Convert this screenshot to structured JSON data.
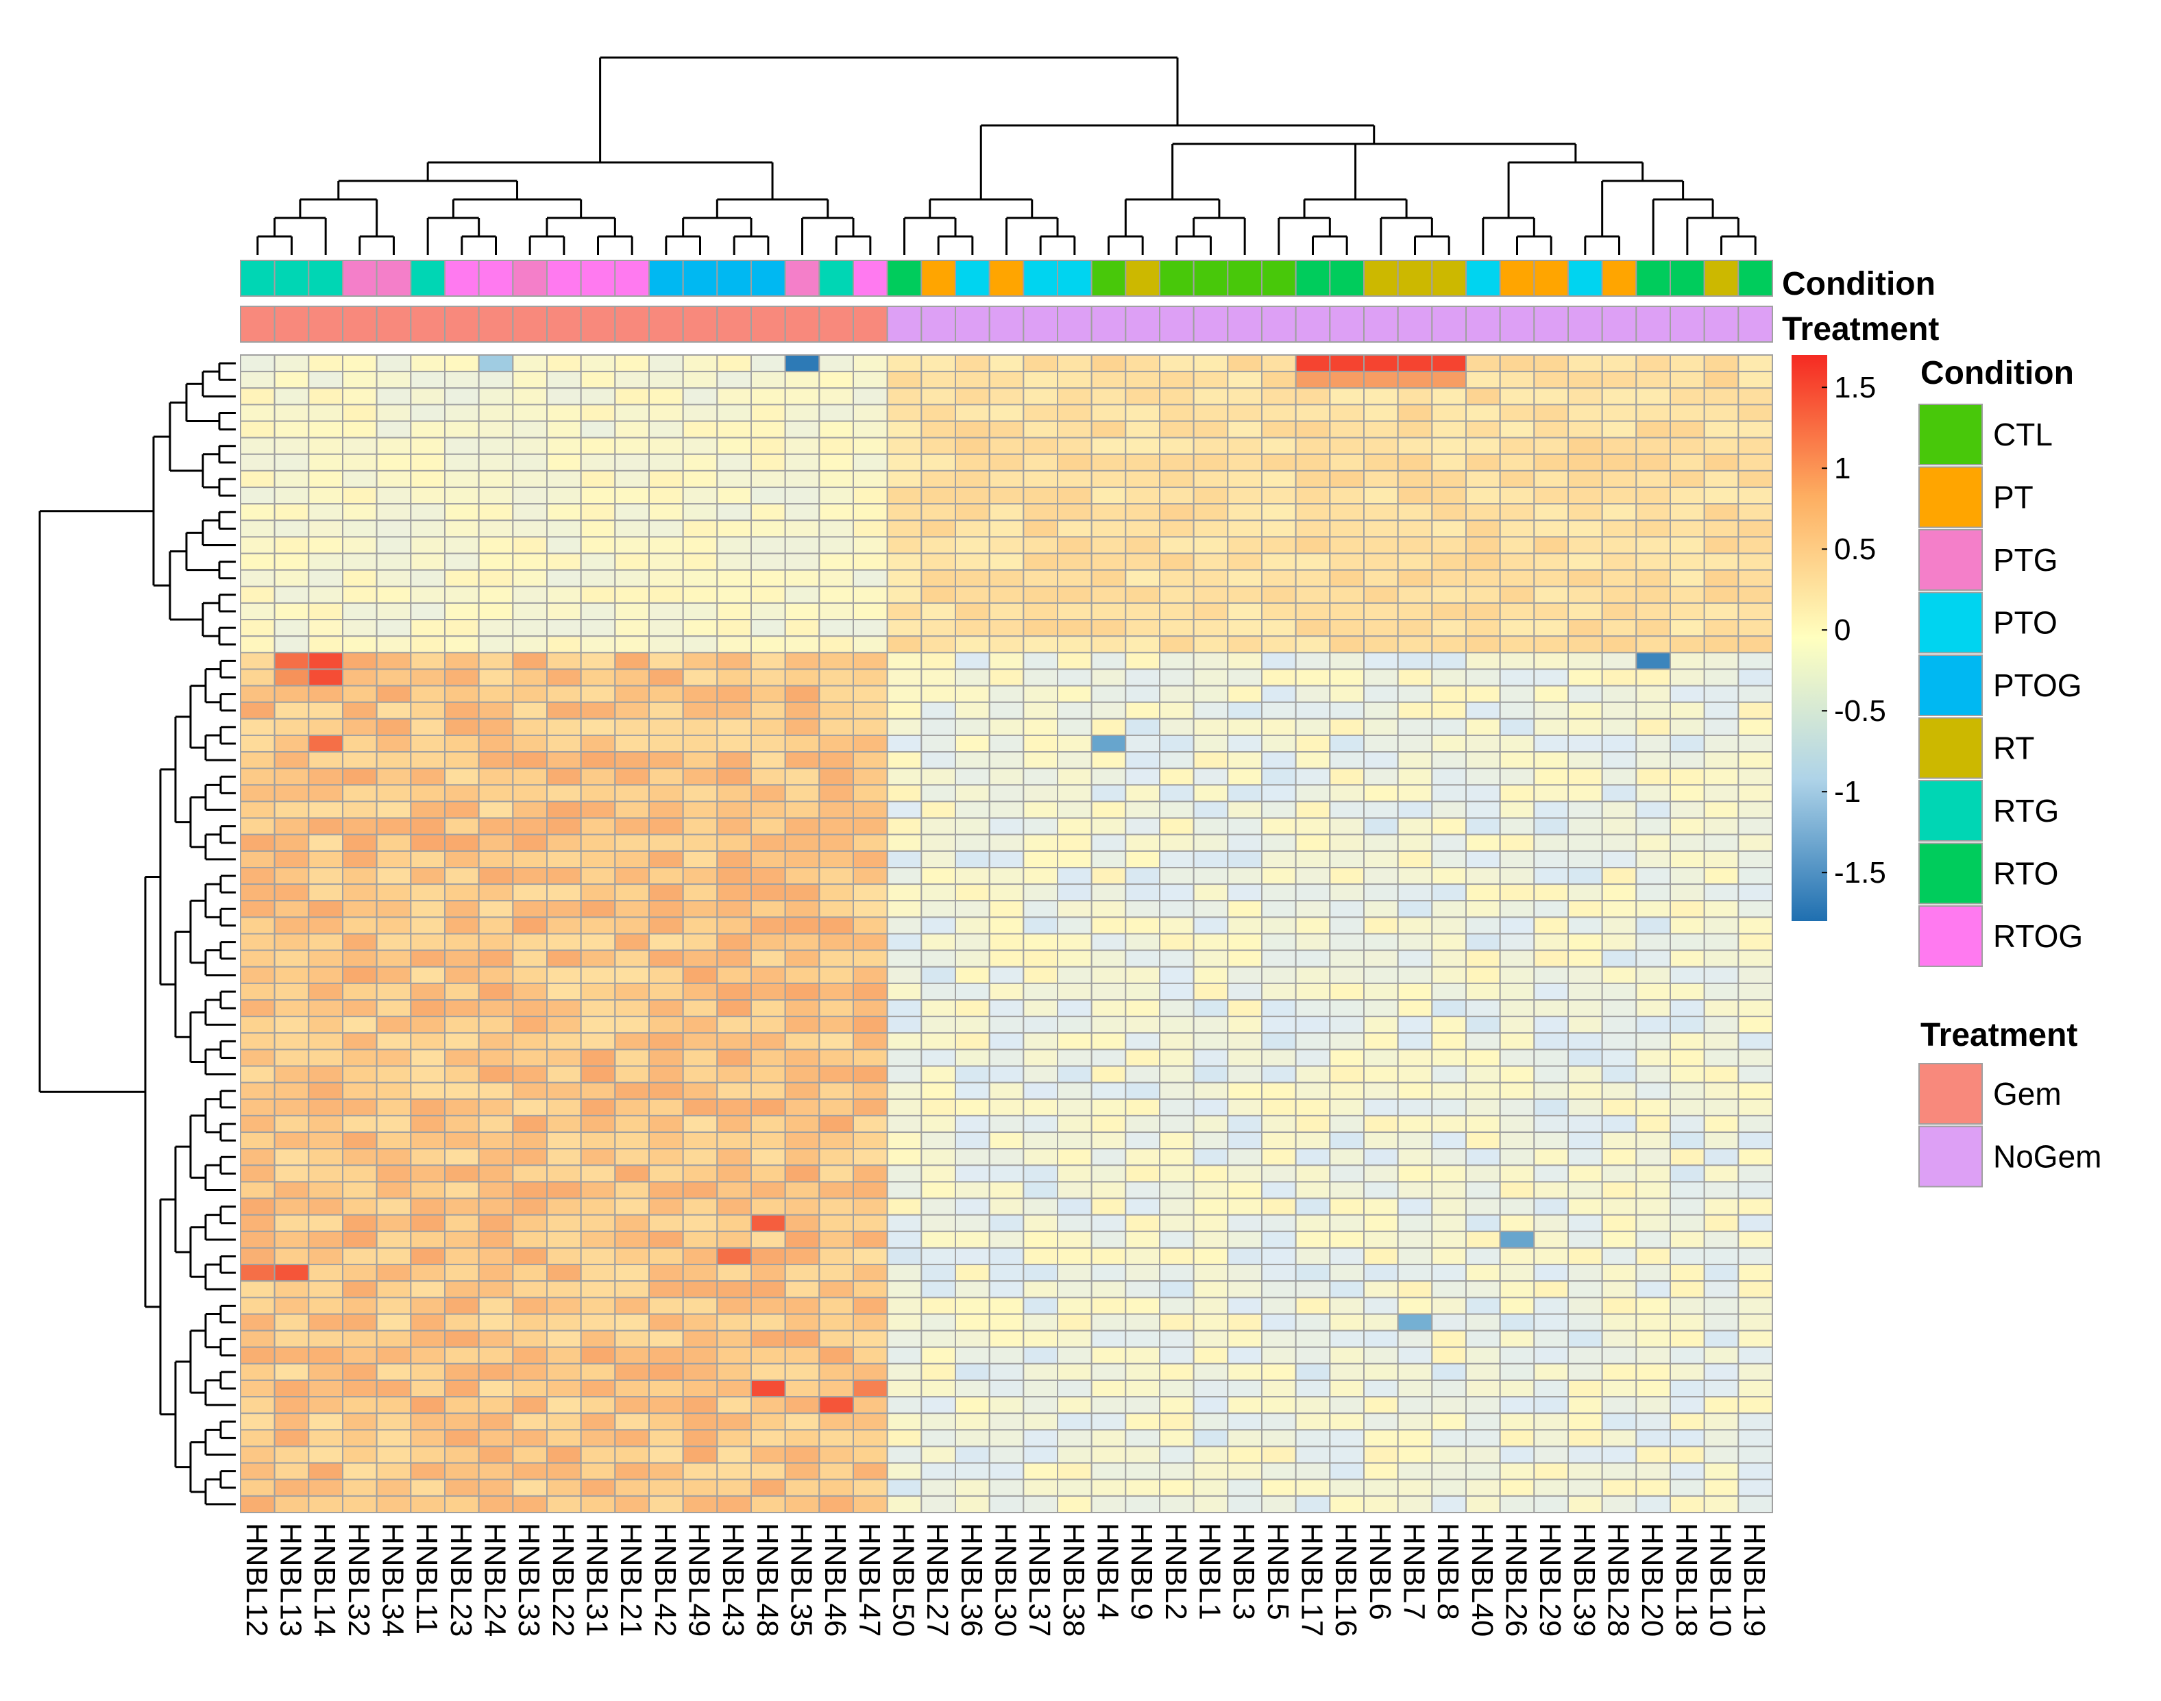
{
  "chart_data": {
    "type": "heatmap",
    "title": "",
    "columns": [
      "HNBL12",
      "HNBL13",
      "HNBL14",
      "HNBL32",
      "HNBL34",
      "HNBL11",
      "HNBL23",
      "HNBL24",
      "HNBL33",
      "HNBL22",
      "HNBL31",
      "HNBL21",
      "HNBL42",
      "HNBL49",
      "HNBL43",
      "HNBL48",
      "HNBL35",
      "HNBL46",
      "HNBL47",
      "HNBL50",
      "HNBL27",
      "HNBL36",
      "HNBL30",
      "HNBL37",
      "HNBL38",
      "HNBL4",
      "HNBL9",
      "HNBL2",
      "HNBL1",
      "HNBL3",
      "HNBL5",
      "HNBL17",
      "HNBL16",
      "HNBL6",
      "HNBL7",
      "HNBL8",
      "HNBL40",
      "HNBL26",
      "HNBL29",
      "HNBL39",
      "HNBL28",
      "HNBL20",
      "HNBL18",
      "HNBL10",
      "HNBL19"
    ],
    "condition": [
      "RTG",
      "RTG",
      "RTG",
      "PTG",
      "PTG",
      "RTG",
      "RTOG",
      "RTOG",
      "PTG",
      "RTOG",
      "RTOG",
      "RTOG",
      "PTOG",
      "PTOG",
      "PTOG",
      "PTOG",
      "PTG",
      "RTG",
      "RTOG",
      "RTO",
      "PT",
      "PTO",
      "PT",
      "PTO",
      "PTO",
      "CTL",
      "RT",
      "CTL",
      "CTL",
      "CTL",
      "CTL",
      "RTO",
      "RTO",
      "RT",
      "RT",
      "RT",
      "PTO",
      "PT",
      "PT",
      "PTO",
      "PT",
      "RTO",
      "RTO",
      "RT",
      "RTO"
    ],
    "treatment": [
      "Gem",
      "Gem",
      "Gem",
      "Gem",
      "Gem",
      "Gem",
      "Gem",
      "Gem",
      "Gem",
      "Gem",
      "Gem",
      "Gem",
      "Gem",
      "Gem",
      "Gem",
      "Gem",
      "Gem",
      "Gem",
      "Gem",
      "NoGem",
      "NoGem",
      "NoGem",
      "NoGem",
      "NoGem",
      "NoGem",
      "NoGem",
      "NoGem",
      "NoGem",
      "NoGem",
      "NoGem",
      "NoGem",
      "NoGem",
      "NoGem",
      "NoGem",
      "NoGem",
      "NoGem",
      "NoGem",
      "NoGem",
      "NoGem",
      "NoGem",
      "NoGem",
      "NoGem",
      "NoGem",
      "NoGem",
      "NoGem"
    ],
    "n_rows": 70,
    "row_block_1_count": 18,
    "value_range": [
      -1.8,
      1.7
    ],
    "colorbar": {
      "ticks": [
        1.5,
        1,
        0.5,
        0,
        -0.5,
        -1,
        -1.5
      ],
      "tick_labels": [
        "1.5",
        "1",
        "0.5",
        "0",
        "-0.5",
        "-1",
        "-1.5"
      ]
    },
    "annotation_rows": [
      "Condition",
      "Treatment"
    ],
    "legend_condition": {
      "title": "Condition",
      "items": [
        {
          "label": "CTL",
          "color": "#48C80A"
        },
        {
          "label": "PT",
          "color": "#FFA500"
        },
        {
          "label": "PTG",
          "color": "#F47FC9"
        },
        {
          "label": "PTO",
          "color": "#00D4F0"
        },
        {
          "label": "PTOG",
          "color": "#00B8F2"
        },
        {
          "label": "RT",
          "color": "#CCB800"
        },
        {
          "label": "RTG",
          "color": "#00D6B4"
        },
        {
          "label": "RTO",
          "color": "#00CC5C"
        },
        {
          "label": "RTOG",
          "color": "#FF7AF0"
        }
      ]
    },
    "legend_treatment": {
      "title": "Treatment",
      "items": [
        {
          "label": "Gem",
          "color": "#F8897C"
        },
        {
          "label": "NoGem",
          "color": "#DDA0F5"
        }
      ]
    },
    "palette": {
      "low": "#2166AC",
      "mid_low": "#D1E5F0",
      "mid": "#FFFFBF",
      "mid_high": "#FDAE61",
      "high": "#F52A22",
      "grid": "#A0A0A0"
    }
  }
}
